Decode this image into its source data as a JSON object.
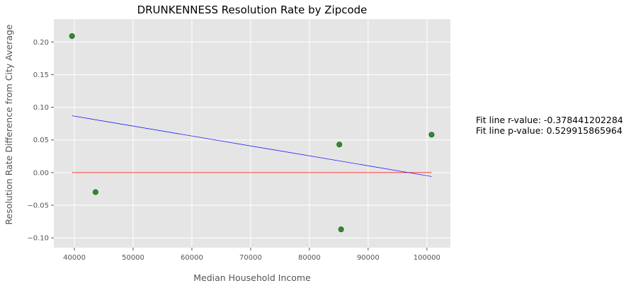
{
  "chart_data": {
    "type": "scatter",
    "title": "DRUNKENNESS Resolution Rate by Zipcode",
    "xlabel": "Median Household Income",
    "ylabel": "Resolution Rate Difference from City Average",
    "xlim": [
      36500,
      104000
    ],
    "ylim": [
      -0.115,
      0.235
    ],
    "x_ticks": [
      40000,
      50000,
      60000,
      70000,
      80000,
      90000,
      100000
    ],
    "x_tick_labels": [
      "40000",
      "50000",
      "60000",
      "70000",
      "80000",
      "90000",
      "100000"
    ],
    "y_ticks": [
      -0.1,
      -0.05,
      0.0,
      0.05,
      0.1,
      0.15,
      0.2
    ],
    "y_tick_labels": [
      "−0.10",
      "−0.05",
      "0.00",
      "0.05",
      "0.10",
      "0.15",
      "0.20"
    ],
    "grid": true,
    "points": [
      {
        "x": 39600,
        "y": 0.209
      },
      {
        "x": 43600,
        "y": -0.03
      },
      {
        "x": 85100,
        "y": 0.043
      },
      {
        "x": 85400,
        "y": -0.087
      },
      {
        "x": 100800,
        "y": 0.058
      }
    ],
    "fit_line": {
      "x": [
        39600,
        100800
      ],
      "y": [
        0.087,
        -0.006
      ]
    },
    "reference_line": {
      "x": [
        39600,
        100800
      ],
      "y": [
        0.0,
        0.0
      ]
    },
    "annotations": [
      "Fit line r-value: -0.378441202284",
      "Fit line p-value: 0.529915865964"
    ],
    "colors": {
      "background": "#e5e5e5",
      "grid": "#ffffff",
      "points": "#2e8b2e",
      "point_edge": "#1f5f1f",
      "fit_line": "#0000ff",
      "reference_line": "#ff0000"
    }
  }
}
